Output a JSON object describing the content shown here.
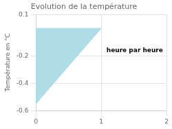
{
  "chart_data": {
    "type": "polygon",
    "title": "Evolution de la température",
    "y_label": "Température en °C",
    "annotations": [
      {
        "text": "heure par heure",
        "x": 1.08,
        "y": -0.14
      }
    ],
    "x": [
      0,
      0,
      1
    ],
    "values": [
      0,
      -0.55,
      0
    ],
    "color": "#b0dce8",
    "xlim": [
      0,
      2
    ],
    "xticks": [
      0,
      1,
      2
    ],
    "ylim": [
      -0.6,
      0.1
    ],
    "yticks": [
      0.1,
      -0.2,
      -0.4,
      -0.6
    ],
    "grid": true
  }
}
